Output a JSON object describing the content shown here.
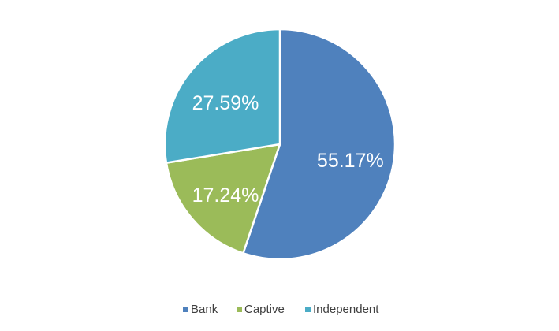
{
  "chart_data": {
    "type": "pie",
    "categories": [
      "Bank",
      "Captive",
      "Independent"
    ],
    "values": [
      55.17,
      17.24,
      27.59
    ],
    "value_labels": [
      "55.17%",
      "17.24%",
      "27.59%"
    ],
    "colors": [
      "#4f81bd",
      "#9bbb59",
      "#4bacc6"
    ],
    "legend": "bottom"
  }
}
